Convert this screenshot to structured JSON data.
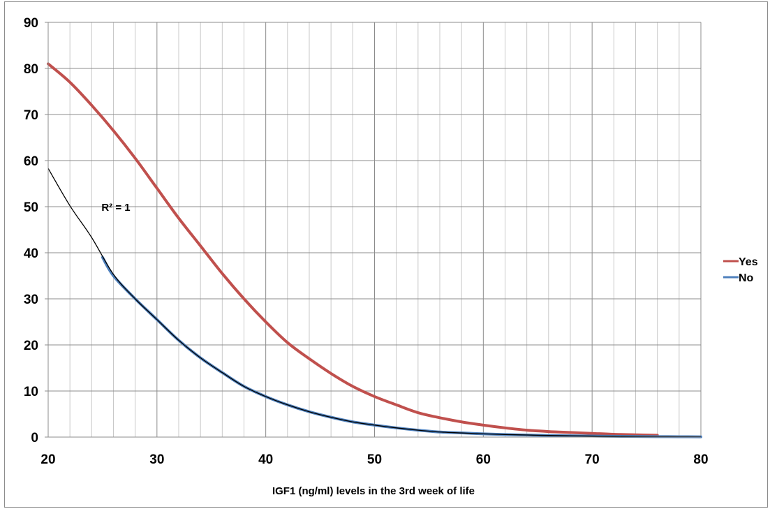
{
  "chart_data": {
    "type": "line",
    "title": "",
    "xlabel": "IGF1 (ng/ml) levels in the 3rd week of life",
    "ylabel": "",
    "xlim": [
      20,
      80
    ],
    "ylim": [
      0,
      90
    ],
    "x_ticks": [
      20,
      30,
      40,
      50,
      60,
      70,
      80
    ],
    "y_ticks": [
      0,
      10,
      20,
      30,
      40,
      50,
      60,
      70,
      80,
      90
    ],
    "x_minor_step": 2,
    "grid": true,
    "legend": "right",
    "series": [
      {
        "name": "Yes",
        "color": "#c0504d",
        "points": [
          [
            20,
            81
          ],
          [
            22,
            77
          ],
          [
            24,
            72
          ],
          [
            26,
            66.5
          ],
          [
            28,
            60.5
          ],
          [
            30,
            54
          ],
          [
            32,
            47.5
          ],
          [
            34,
            41.5
          ],
          [
            36,
            35.5
          ],
          [
            38,
            30
          ],
          [
            40,
            25
          ],
          [
            42,
            20.5
          ],
          [
            44,
            17
          ],
          [
            46,
            13.8
          ],
          [
            48,
            11
          ],
          [
            50,
            8.8
          ],
          [
            52,
            7
          ],
          [
            54,
            5.3
          ],
          [
            56,
            4.2
          ],
          [
            58,
            3.3
          ],
          [
            60,
            2.6
          ],
          [
            62,
            2
          ],
          [
            64,
            1.5
          ],
          [
            66,
            1.2
          ],
          [
            68,
            1
          ],
          [
            70,
            0.8
          ],
          [
            72,
            0.6
          ],
          [
            74,
            0.5
          ],
          [
            76,
            0.4
          ]
        ]
      },
      {
        "name": "No",
        "color": "#4f81bd",
        "points": [
          [
            25,
            39
          ],
          [
            26,
            35
          ],
          [
            28,
            30
          ],
          [
            30,
            25.5
          ],
          [
            32,
            21
          ],
          [
            34,
            17.2
          ],
          [
            36,
            14
          ],
          [
            38,
            11
          ],
          [
            40,
            8.8
          ],
          [
            42,
            7
          ],
          [
            44,
            5.5
          ],
          [
            46,
            4.3
          ],
          [
            48,
            3.3
          ],
          [
            50,
            2.6
          ],
          [
            52,
            2
          ],
          [
            54,
            1.5
          ],
          [
            56,
            1.1
          ],
          [
            58,
            0.9
          ],
          [
            60,
            0.7
          ],
          [
            62,
            0.55
          ],
          [
            64,
            0.45
          ],
          [
            66,
            0.35
          ],
          [
            68,
            0.28
          ],
          [
            70,
            0.22
          ],
          [
            72,
            0.17
          ],
          [
            74,
            0.13
          ],
          [
            76,
            0.1
          ],
          [
            78,
            0.08
          ],
          [
            80,
            0.06
          ]
        ]
      }
    ],
    "trendline": {
      "color": "#000000",
      "label": "R² = 1",
      "label_at": [
        24,
        50
      ],
      "points": [
        [
          20,
          58.3
        ],
        [
          22,
          50.2
        ],
        [
          24,
          43.3
        ],
        [
          26,
          35.3
        ],
        [
          28,
          30
        ],
        [
          30,
          25.5
        ],
        [
          32,
          21
        ],
        [
          34,
          17.2
        ],
        [
          36,
          14
        ],
        [
          38,
          11
        ],
        [
          40,
          8.8
        ],
        [
          42,
          7
        ],
        [
          44,
          5.5
        ],
        [
          46,
          4.3
        ],
        [
          48,
          3.3
        ],
        [
          50,
          2.6
        ],
        [
          52,
          2
        ],
        [
          54,
          1.5
        ],
        [
          56,
          1.1
        ],
        [
          58,
          0.9
        ],
        [
          60,
          0.7
        ],
        [
          62,
          0.55
        ],
        [
          64,
          0.45
        ],
        [
          66,
          0.35
        ],
        [
          68,
          0.28
        ],
        [
          70,
          0.22
        ],
        [
          72,
          0.17
        ],
        [
          74,
          0.13
        ],
        [
          76,
          0.1
        ],
        [
          78,
          0.08
        ],
        [
          80,
          0.06
        ]
      ]
    }
  }
}
